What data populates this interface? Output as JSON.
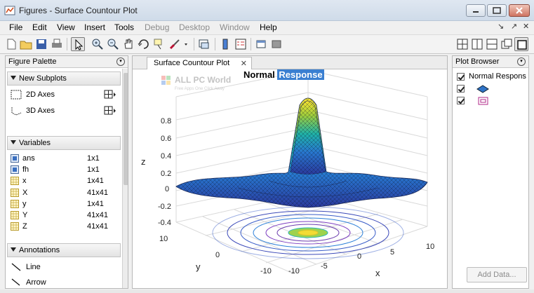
{
  "window": {
    "title": "Figures - Surface Countour Plot"
  },
  "menubar": {
    "items": [
      "File",
      "Edit",
      "View",
      "Insert",
      "Tools",
      "Debug",
      "Desktop",
      "Window",
      "Help"
    ]
  },
  "figure_palette": {
    "title": "Figure Palette",
    "new_subplots_label": "New Subplots",
    "subplots": [
      {
        "label": "2D Axes",
        "icon": "axes-2d-icon"
      },
      {
        "label": "3D Axes",
        "icon": "axes-3d-icon"
      }
    ],
    "variables_label": "Variables",
    "variables": [
      {
        "name": "ans",
        "size": "1x1"
      },
      {
        "name": "fh",
        "size": "1x1"
      },
      {
        "name": "x",
        "size": "1x41"
      },
      {
        "name": "X",
        "size": "41x41"
      },
      {
        "name": "y",
        "size": "1x41"
      },
      {
        "name": "Y",
        "size": "41x41"
      },
      {
        "name": "Z",
        "size": "41x41"
      }
    ],
    "annotations_label": "Annotations",
    "annotations": [
      {
        "label": "Line"
      },
      {
        "label": "Arrow"
      }
    ]
  },
  "document": {
    "tab_label": "Surface Countour Plot",
    "title_word1": "Normal",
    "title_word2": "Response",
    "watermark_title": "ALL PC World",
    "watermark_sub": "Free Apps One Click Away",
    "z_axis_label": "z",
    "y_axis_label": "y",
    "x_axis_label": "x",
    "z_ticks": [
      "0.8",
      "0.6",
      "0.4",
      "0.2",
      "0",
      "-0.2",
      "-0.4"
    ],
    "y_ticks": [
      "10",
      "0",
      "-10"
    ],
    "x_ticks": [
      "-10",
      "-5",
      "0",
      "5",
      "10"
    ]
  },
  "plot_browser": {
    "title": "Plot Browser",
    "items": [
      {
        "label": "Normal Respons",
        "checked": true
      },
      {
        "label": "",
        "checked": true,
        "icon": "surface-icon"
      },
      {
        "label": "",
        "checked": true,
        "icon": "contour-icon"
      }
    ],
    "add_data_label": "Add Data..."
  }
}
